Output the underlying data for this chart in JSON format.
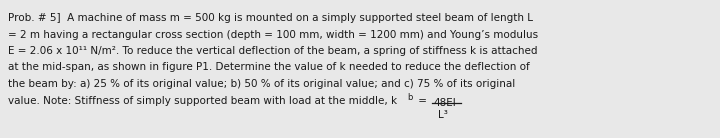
{
  "background_color": "#e8e8e8",
  "text_color": "#1a1a1a",
  "lines": [
    "Prob. # 5]  A machine of mass m = 500 kg is mounted on a simply supported steel beam of length L",
    "= 2 m having a rectangular cross section (depth = 100 mm, width = 1200 mm) and Young’s modulus",
    "E = 2.06 x 10¹¹ N/m². To reduce the vertical deflection of the beam, a spring of stiffness k is attached",
    "at the mid-span, as shown in figure P1. Determine the value of k needed to reduce the deflection of",
    "the beam by: a) 25 % of its original value; b) 50 % of its original value; and c) 75 % of its original"
  ],
  "line6_main": "value. Note: Stiffness of simply supported beam with load at the middle, k",
  "line6_sub": "b",
  "line6_eq": " =",
  "frac_top": "48EI",
  "frac_bot": "L³",
  "fontsize": 7.5,
  "font_family": "Arial"
}
